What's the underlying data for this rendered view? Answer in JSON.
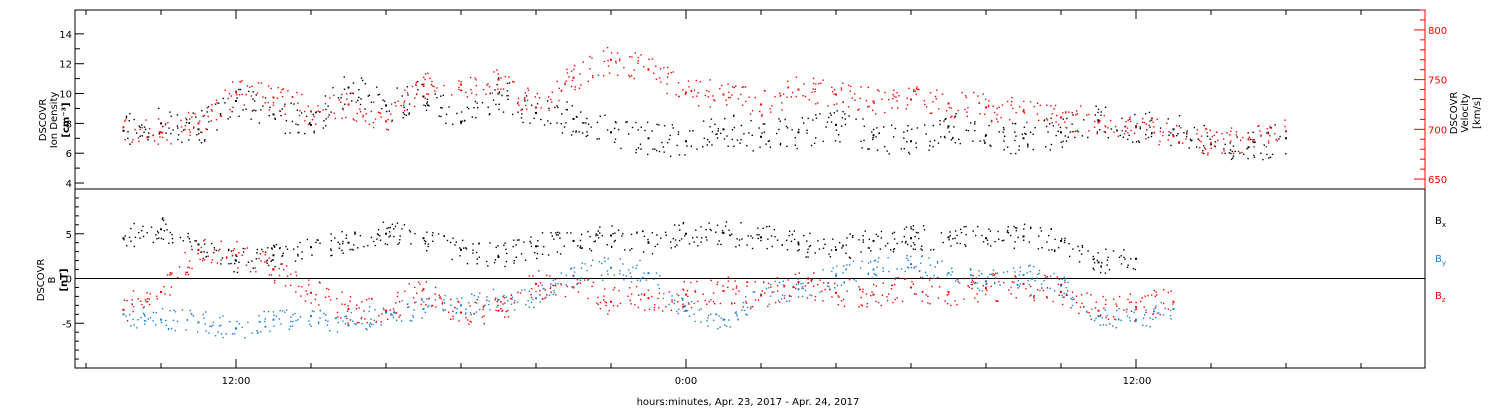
{
  "chart_data": [
    {
      "type": "scatter",
      "panel": "top",
      "ylabel": [
        "DSCOVR",
        "Ion Density",
        "[cm⁻³]"
      ],
      "ylabel_right": [
        "DSCOVR",
        "Velocity",
        "[km/s]"
      ],
      "yticks": [
        4,
        6,
        8,
        10,
        12,
        14
      ],
      "yticks_right": [
        650,
        700,
        750,
        800
      ],
      "ylim": [
        3.6,
        15.6
      ],
      "ylim_right": [
        640,
        820
      ],
      "series": [
        {
          "name": "Ion Density",
          "color": "#000000",
          "axis": "left",
          "points": [
            [
              -15,
              7.5
            ],
            [
              -14,
              8.0
            ],
            [
              -13,
              7.6
            ],
            [
              -12,
              9.5
            ],
            [
              -11,
              8.6
            ],
            [
              -10,
              7.9
            ],
            [
              -9,
              10.4
            ],
            [
              -8,
              9.2
            ],
            [
              -7,
              9.8
            ],
            [
              -6,
              8.1
            ],
            [
              -5,
              10.0
            ],
            [
              -4,
              8.7
            ],
            [
              -3,
              8.3
            ],
            [
              -2,
              7.4
            ],
            [
              -1,
              7.0
            ],
            [
              0,
              6.8
            ],
            [
              1,
              7.6
            ],
            [
              2,
              7.1
            ],
            [
              3,
              7.4
            ],
            [
              4,
              7.9
            ],
            [
              5,
              7.2
            ],
            [
              6,
              6.8
            ],
            [
              7,
              7.8
            ],
            [
              8,
              7.2
            ],
            [
              9,
              7.0
            ],
            [
              10,
              7.4
            ],
            [
              11,
              8.2
            ],
            [
              12,
              7.8
            ],
            [
              13,
              7.6
            ],
            [
              14,
              6.6
            ],
            [
              15,
              6.4
            ],
            [
              16,
              7.0
            ]
          ]
        },
        {
          "name": "Velocity",
          "color": "#ff0000",
          "axis": "right",
          "points": [
            [
              -15,
              702
            ],
            [
              -14,
              697
            ],
            [
              -13,
              706
            ],
            [
              -12,
              738
            ],
            [
              -11,
              732
            ],
            [
              -10,
              718
            ],
            [
              -9,
              725
            ],
            [
              -8,
              708
            ],
            [
              -7,
              745
            ],
            [
              -6,
              745
            ],
            [
              -5,
              750
            ],
            [
              -4,
              722
            ],
            [
              -3,
              752
            ],
            [
              -2,
              770
            ],
            [
              -1,
              760
            ],
            [
              0,
              737
            ],
            [
              1,
              735
            ],
            [
              2,
              725
            ],
            [
              3,
              740
            ],
            [
              4,
              735
            ],
            [
              5,
              728
            ],
            [
              6,
              730
            ],
            [
              7,
              726
            ],
            [
              8,
              722
            ],
            [
              9,
              718
            ],
            [
              10,
              712
            ],
            [
              11,
              707
            ],
            [
              12,
              702
            ],
            [
              13,
              693
            ],
            [
              14,
              686
            ],
            [
              15,
              690
            ],
            [
              16,
              698
            ]
          ]
        }
      ]
    },
    {
      "type": "scatter",
      "panel": "bottom",
      "ylabel": [
        "DSCOVR",
        "B",
        "[nT]"
      ],
      "yticks": [
        -5,
        0,
        5
      ],
      "ylim": [
        -10,
        10
      ],
      "zero_line": true,
      "legend_placement": "right",
      "series": [
        {
          "name": "Bx",
          "color": "#000000",
          "points": [
            [
              -15,
              4.5
            ],
            [
              -14,
              5.5
            ],
            [
              -13,
              3.8
            ],
            [
              -12,
              2.0
            ],
            [
              -11,
              2.6
            ],
            [
              -10,
              3.5
            ],
            [
              -9,
              4.0
            ],
            [
              -8,
              5.0
            ],
            [
              -7,
              4.5
            ],
            [
              -6,
              3.2
            ],
            [
              -5,
              2.4
            ],
            [
              -4,
              3.6
            ],
            [
              -3,
              4.2
            ],
            [
              -2,
              4.8
            ],
            [
              -1,
              4.0
            ],
            [
              0,
              5.0
            ],
            [
              1,
              5.1
            ],
            [
              2,
              4.6
            ],
            [
              3,
              3.9
            ],
            [
              4,
              3.2
            ],
            [
              5,
              4.2
            ],
            [
              6,
              4.5
            ],
            [
              7,
              4.6
            ],
            [
              8,
              4.5
            ],
            [
              9,
              4.7
            ],
            [
              10,
              4.2
            ],
            [
              11,
              1.8
            ],
            [
              12,
              2.2
            ]
          ]
        },
        {
          "name": "By",
          "color": "#1e7fd8",
          "points": [
            [
              -15,
              -4.0
            ],
            [
              -14,
              -4.6
            ],
            [
              -13,
              -4.9
            ],
            [
              -12,
              -5.6
            ],
            [
              -11,
              -4.6
            ],
            [
              -10,
              -4.2
            ],
            [
              -9,
              -5.2
            ],
            [
              -8,
              -3.8
            ],
            [
              -7,
              -3.4
            ],
            [
              -6,
              -3.0
            ],
            [
              -5,
              -2.4
            ],
            [
              -4,
              -2.2
            ],
            [
              -3,
              0.3
            ],
            [
              -2,
              1.2
            ],
            [
              -1,
              0.6
            ],
            [
              0,
              -3.6
            ],
            [
              1,
              -4.6
            ],
            [
              2,
              -1.8
            ],
            [
              3,
              -1.2
            ],
            [
              4,
              0.3
            ],
            [
              5,
              1.0
            ],
            [
              6,
              1.6
            ],
            [
              7,
              0.6
            ],
            [
              8,
              -0.3
            ],
            [
              9,
              0.4
            ],
            [
              10,
              -0.8
            ],
            [
              11,
              -4.2
            ],
            [
              12,
              -4.6
            ],
            [
              13,
              -3.4
            ]
          ]
        },
        {
          "name": "Bz",
          "color": "#ff0000",
          "points": [
            [
              -15,
              -3.5
            ],
            [
              -14,
              -1.5
            ],
            [
              -13,
              3.2
            ],
            [
              -12,
              2.6
            ],
            [
              -11,
              1.0
            ],
            [
              -10,
              -1.6
            ],
            [
              -9,
              -3.4
            ],
            [
              -8,
              -3.6
            ],
            [
              -7,
              -1.2
            ],
            [
              -6,
              -3.8
            ],
            [
              -5,
              -3.6
            ],
            [
              -4,
              -0.6
            ],
            [
              -3,
              -1.0
            ],
            [
              -2,
              -2.6
            ],
            [
              -1,
              -2.2
            ],
            [
              0,
              -1.8
            ],
            [
              1,
              -1.4
            ],
            [
              2,
              -1.9
            ],
            [
              3,
              -0.4
            ],
            [
              4,
              -1.6
            ],
            [
              5,
              -1.8
            ],
            [
              6,
              -1.0
            ],
            [
              7,
              -1.5
            ],
            [
              8,
              -1.1
            ],
            [
              9,
              -0.6
            ],
            [
              10,
              -1.5
            ],
            [
              11,
              -3.6
            ],
            [
              12,
              -3.2
            ],
            [
              13,
              -2.6
            ]
          ]
        }
      ]
    }
  ],
  "x_axis": {
    "tick_labels": [
      "12:00",
      "0:00",
      "12:00"
    ],
    "xlabel": "hours:minutes, Apr. 23, 2017 - Apr. 24, 2017"
  },
  "legend": {
    "bx": "B",
    "bx_sub": "x",
    "by": "B",
    "by_sub": "y",
    "bz": "B",
    "bz_sub": "z"
  },
  "colors": {
    "density": "#000000",
    "velocity": "#ff0000",
    "bx": "#000000",
    "by": "#1e7fd8",
    "bz": "#ff0000"
  }
}
